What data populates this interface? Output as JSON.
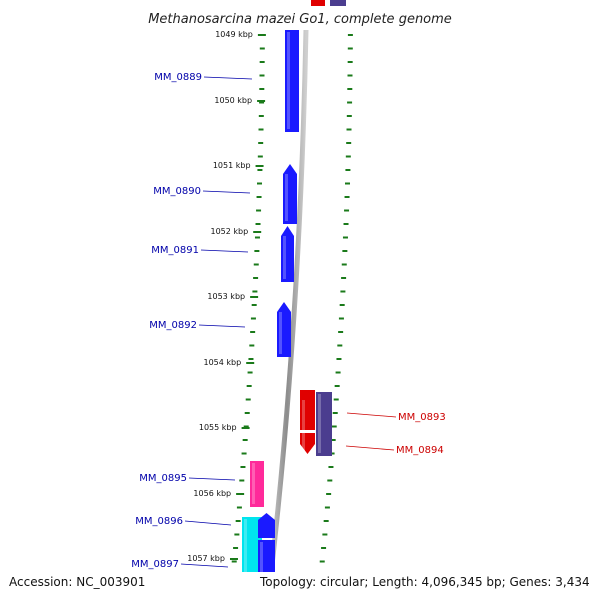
{
  "title": "Methanosarcina mazei Go1, complete genome",
  "footer": {
    "accession": "Accession: NC_003901",
    "topology": "Topology: circular; Length: 4,096,345 bp; Genes: 3,434"
  },
  "ticks": [
    "1049 kbp",
    "1050 kbp",
    "1051 kbp",
    "1052 kbp",
    "1053 kbp",
    "1054 kbp",
    "1055 kbp",
    "1056 kbp",
    "1057 kbp"
  ],
  "genes": [
    {
      "label": "MM_0889",
      "color": "#1a1aff",
      "strand": "+"
    },
    {
      "label": "MM_0890",
      "color": "#1a1aff",
      "strand": "+"
    },
    {
      "label": "MM_0891",
      "color": "#1a1aff",
      "strand": "+"
    },
    {
      "label": "MM_0892",
      "color": "#1a1aff",
      "strand": "+"
    },
    {
      "label": "MM_0893",
      "color": "#e00000",
      "strand": "-"
    },
    {
      "label": "MM_0894",
      "color": "#4b3d8f",
      "strand": "-"
    },
    {
      "label": "MM_0895",
      "color": "#ff2a9a",
      "strand": "+"
    },
    {
      "label": "MM_0896",
      "color": "#00e5ee",
      "strand": "+"
    },
    {
      "label": "MM_0897",
      "color": "#1a1aff",
      "strand": "+"
    }
  ],
  "colors": {
    "forward": "#1a1aff",
    "reverse": "#e00000",
    "label_forward": "#0000aa",
    "label_reverse": "#cc0000",
    "tick": "#1a7a1a",
    "backbone": "#999999"
  }
}
